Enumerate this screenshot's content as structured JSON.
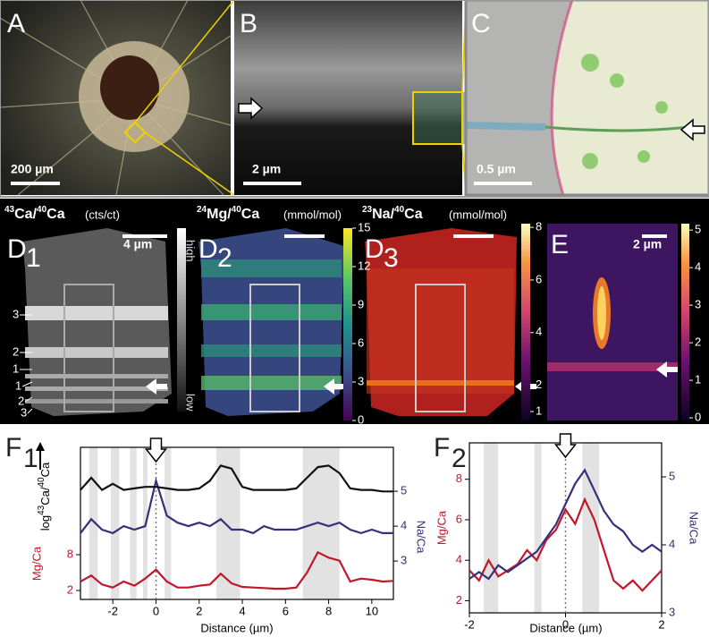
{
  "panels": {
    "A": {
      "label": "A",
      "scale": "200 µm"
    },
    "B": {
      "label": "B",
      "scale": "2 µm"
    },
    "C": {
      "label": "C",
      "scale": "0.5 µm"
    },
    "D1": {
      "label": "D",
      "sub": "1",
      "scale": "4 µm",
      "header": [
        {
          "sup": "43",
          "base": "Ca/"
        },
        {
          "sup": "40",
          "base": "Ca"
        }
      ],
      "unit": "(cts/ct)",
      "high": "high",
      "low": "low",
      "layers": [
        "3",
        "2",
        "1",
        "1",
        "2",
        "3"
      ]
    },
    "D2": {
      "label": "D",
      "sub": "2",
      "header": [
        {
          "sup": "24",
          "base": "Mg/"
        },
        {
          "sup": "40",
          "base": "Ca"
        }
      ],
      "unit": "(mmol/mol)"
    },
    "D3": {
      "label": "D",
      "sub": "3",
      "header": [
        {
          "sup": "23",
          "base": "Na/"
        },
        {
          "sup": "40",
          "base": "Ca"
        }
      ],
      "unit": "(mmol/mol)"
    },
    "E": {
      "label": "E",
      "scale": "2 µm"
    }
  },
  "colorbars": [
    {
      "ticks": [
        0,
        3,
        6,
        9,
        12,
        15
      ],
      "lim": [
        0,
        15
      ]
    },
    {
      "ticks": [
        1,
        2,
        4,
        6,
        8
      ],
      "lim": [
        0.66,
        8.14
      ]
    },
    {
      "ticks": [
        0,
        1,
        2,
        3,
        4,
        5
      ],
      "lim": [
        -0.07,
        5.17
      ]
    }
  ],
  "chart_data": [
    {
      "type": "line",
      "panel": "F",
      "panel_sub": "1",
      "xlabel": "Distance (µm)",
      "ylabel": "Mg/Ca",
      "y2label": "Na/Ca",
      "y3label": [
        {
          "base": "log"
        },
        {
          "sup": "43",
          "base": "Ca/"
        },
        {
          "sup": "40",
          "base": "Ca"
        }
      ],
      "xlim": [
        -3.5,
        11
      ],
      "xticks": [
        -2,
        0,
        2,
        4,
        6,
        8,
        10
      ],
      "ylim": [
        0.5,
        26
      ],
      "yticks": [
        2,
        8
      ],
      "y2lim": [
        1.9,
        6.26
      ],
      "y2ticks": [
        3,
        4,
        5
      ],
      "y3lim": [
        0,
        1
      ],
      "marker_x": 0,
      "bands": [
        [
          -3.1,
          -2.7
        ],
        [
          -2.1,
          -1.7
        ],
        [
          -1.2,
          -0.9
        ],
        [
          -0.6,
          -0.4
        ],
        [
          0.4,
          0.7
        ],
        [
          2.8,
          3.9
        ],
        [
          6.8,
          8.5
        ]
      ],
      "x": [
        -3.5,
        -3,
        -2.5,
        -2,
        -1.5,
        -1,
        -0.5,
        0,
        0.5,
        1,
        1.5,
        2,
        2.5,
        3,
        3.5,
        4,
        4.5,
        5,
        5.5,
        6,
        6.5,
        7,
        7.5,
        8,
        8.5,
        9,
        9.5,
        10,
        10.5,
        11
      ],
      "series": [
        {
          "name": "Mg/Ca",
          "color": "#c0182a",
          "axis": "y",
          "values": [
            3.5,
            4.5,
            3,
            2.5,
            3.5,
            2.8,
            4,
            5.5,
            3.5,
            2.5,
            2.5,
            2.8,
            3,
            4.8,
            3.2,
            2.6,
            2.5,
            2.4,
            2.3,
            2.3,
            2.5,
            5,
            8.4,
            7.5,
            7,
            3.5,
            4,
            3.8,
            3.5,
            3.6
          ]
        },
        {
          "name": "Na/Ca",
          "color": "#36307a",
          "axis": "y2",
          "values": [
            3.8,
            4.2,
            3.9,
            3.8,
            4.0,
            3.9,
            4.0,
            5.3,
            4.3,
            4.1,
            4.0,
            4.1,
            4.0,
            4.2,
            3.9,
            3.9,
            3.8,
            4.0,
            3.9,
            3.9,
            3.9,
            4.0,
            4.1,
            4.0,
            4.1,
            3.9,
            3.8,
            3.9,
            3.8,
            3.8
          ]
        },
        {
          "name": "log43Ca/40Ca",
          "color": "#111111",
          "axis": "y3",
          "values": [
            0.72,
            0.8,
            0.72,
            0.76,
            0.72,
            0.73,
            0.74,
            0.74,
            0.73,
            0.72,
            0.72,
            0.73,
            0.78,
            0.88,
            0.86,
            0.74,
            0.72,
            0.72,
            0.72,
            0.72,
            0.73,
            0.8,
            0.87,
            0.88,
            0.83,
            0.73,
            0.72,
            0.72,
            0.71,
            0.71
          ]
        }
      ]
    },
    {
      "type": "line",
      "panel": "F",
      "panel_sub": "2",
      "xlabel": "Distance (µm)",
      "ylabel": "Mg/Ca",
      "y2label": "Na/Ca",
      "xlim": [
        -2,
        2
      ],
      "xticks": [
        -2,
        0,
        2
      ],
      "ylim": [
        1.4,
        9.8
      ],
      "yticks": [
        2,
        4,
        6,
        8
      ],
      "y2lim": [
        3,
        5.5
      ],
      "y2ticks": [
        3,
        4,
        5
      ],
      "marker_x": 0,
      "bands": [
        [
          -1.7,
          -1.4
        ],
        [
          -0.65,
          -0.5
        ],
        [
          0.35,
          0.7
        ]
      ],
      "x": [
        -2,
        -1.8,
        -1.6,
        -1.4,
        -1.2,
        -1,
        -0.8,
        -0.6,
        -0.4,
        -0.2,
        0,
        0.2,
        0.4,
        0.6,
        0.8,
        1,
        1.2,
        1.4,
        1.6,
        1.8,
        2
      ],
      "series": [
        {
          "name": "Mg/Ca",
          "color": "#c0182a",
          "axis": "y",
          "values": [
            3.5,
            3.0,
            4.0,
            3.2,
            3.5,
            3.8,
            4.5,
            4.0,
            5.0,
            5.5,
            6.5,
            5.8,
            7.0,
            6.0,
            4.5,
            3.0,
            2.6,
            3.0,
            2.5,
            3.0,
            3.5
          ]
        },
        {
          "name": "Na/Ca",
          "color": "#36307a",
          "axis": "y2",
          "values": [
            3.5,
            3.6,
            3.5,
            3.7,
            3.6,
            3.7,
            3.8,
            3.9,
            4.1,
            4.3,
            4.6,
            4.9,
            5.1,
            4.8,
            4.5,
            4.3,
            4.2,
            4.0,
            3.9,
            4.0,
            3.9
          ]
        }
      ]
    }
  ]
}
